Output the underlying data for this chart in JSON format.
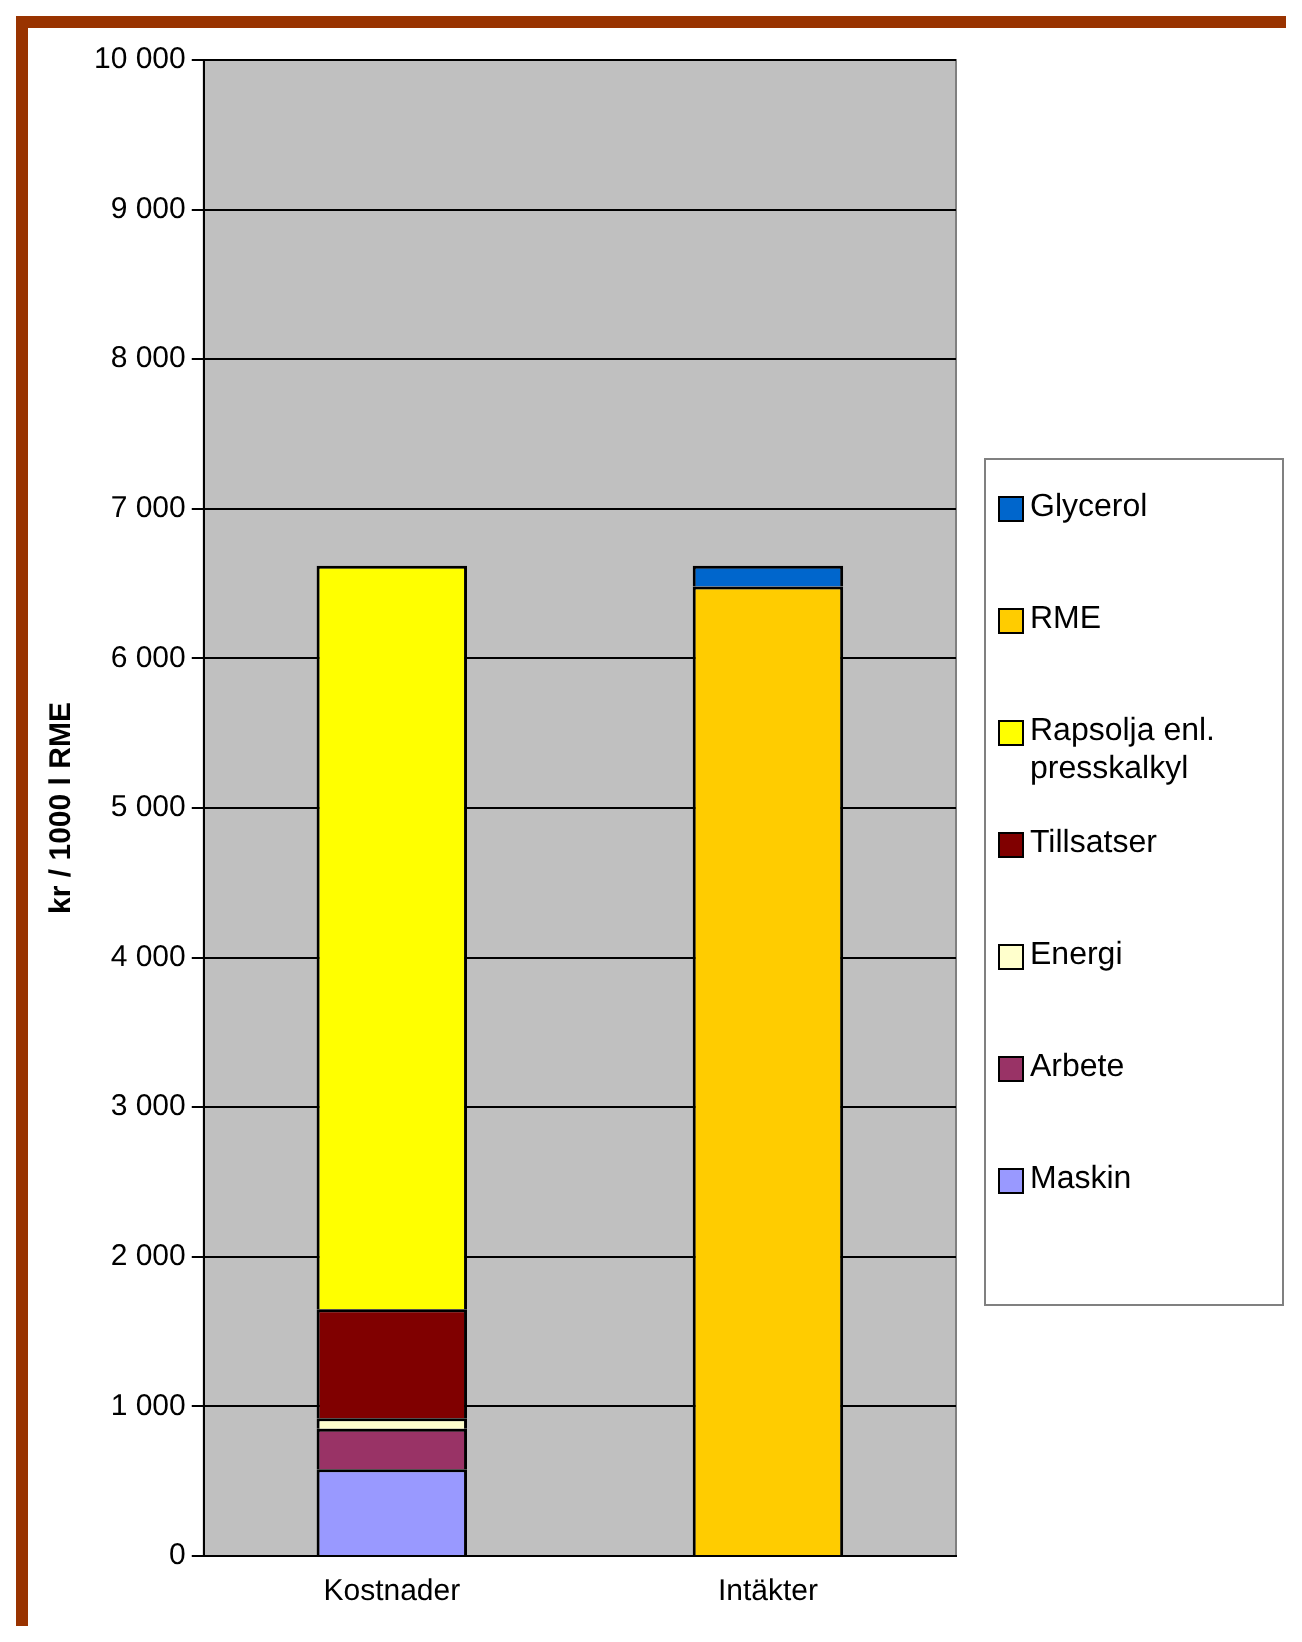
{
  "chart_data": {
    "type": "bar",
    "stacked": true,
    "ylabel": "kr / 1000 l RME",
    "categories": [
      "Kostnader",
      "Intäkter"
    ],
    "series": [
      {
        "name": "Maskin",
        "color": "#9999ff",
        "values": [
          580,
          null
        ]
      },
      {
        "name": "Arbete",
        "color": "#993366",
        "values": [
          270,
          null
        ]
      },
      {
        "name": "Energi",
        "color": "#ffffcc",
        "values": [
          70,
          null
        ]
      },
      {
        "name": "Tillsatser",
        "color": "#800000",
        "values": [
          730,
          null
        ]
      },
      {
        "name": "Rapsolja enl. presskalkyl",
        "color": "#ffff00",
        "values": [
          4970,
          null
        ]
      },
      {
        "name": "RME",
        "color": "#ffcc00",
        "values": [
          null,
          6480
        ]
      },
      {
        "name": "Glycerol",
        "color": "#0066cc",
        "values": [
          null,
          140
        ]
      }
    ],
    "ylim": [
      0,
      10000
    ],
    "yticks": [
      {
        "value": 0,
        "label": "0"
      },
      {
        "value": 1000,
        "label": "1 000"
      },
      {
        "value": 2000,
        "label": "2 000"
      },
      {
        "value": 3000,
        "label": "3 000"
      },
      {
        "value": 4000,
        "label": "4 000"
      },
      {
        "value": 5000,
        "label": "5 000"
      },
      {
        "value": 6000,
        "label": "6 000"
      },
      {
        "value": 7000,
        "label": "7 000"
      },
      {
        "value": 8000,
        "label": "8 000"
      },
      {
        "value": 9000,
        "label": "9 000"
      },
      {
        "value": 10000,
        "label": "10 000"
      }
    ],
    "grid": "y",
    "legend": "right"
  }
}
